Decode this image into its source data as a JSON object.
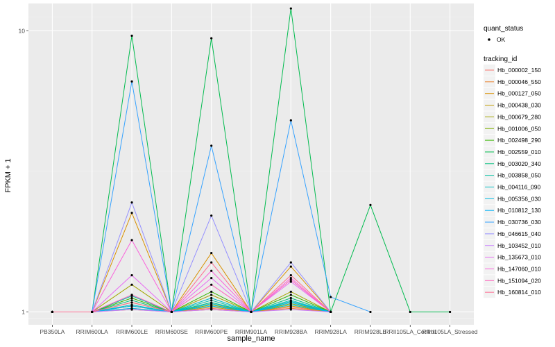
{
  "chart_data": {
    "type": "line",
    "xlabel": "sample_name",
    "ylabel": "FPKM + 1",
    "y_scale": "log10",
    "ylim": [
      0.9,
      12.5
    ],
    "y_ticks": [
      {
        "value": 1,
        "label": "1"
      },
      {
        "value": 10,
        "label": "10"
      }
    ],
    "categories": [
      "PB350LA",
      "RRIM600LA",
      "RRIM600LE",
      "RRIM600SE",
      "RRIM600PE",
      "RRIM901LA",
      "RRIM928BA",
      "RRIM928LA",
      "RRIM928LE",
      "RRII105LA_Control",
      "RRII105LA_Stressed"
    ],
    "legend_quant": {
      "title": "quant_status",
      "entries": [
        "OK"
      ]
    },
    "legend_tracking": {
      "title": "tracking_id"
    },
    "series": [
      {
        "name": "Hb_000002_150",
        "color": "#F8766D",
        "values": [
          1,
          1,
          1.03,
          1,
          1.03,
          1,
          1.04,
          1,
          null,
          null,
          null
        ]
      },
      {
        "name": "Hb_000046_550",
        "color": "#EA8331",
        "values": [
          1,
          1,
          1.02,
          1,
          1.02,
          1,
          1.03,
          1,
          null,
          null,
          null
        ]
      },
      {
        "name": "Hb_000127_050",
        "color": "#D89000",
        "values": [
          1,
          1,
          2.25,
          1,
          1.62,
          1,
          1.45,
          1,
          null,
          null,
          null
        ]
      },
      {
        "name": "Hb_000438_030",
        "color": "#C09B00",
        "values": [
          1,
          1,
          1.05,
          1,
          1.04,
          1,
          1.05,
          1,
          null,
          null,
          null
        ]
      },
      {
        "name": "Hb_000679_280",
        "color": "#A3A500",
        "values": [
          1,
          1,
          1.25,
          1,
          1.15,
          1,
          1.18,
          1,
          null,
          null,
          null
        ]
      },
      {
        "name": "Hb_001006_050",
        "color": "#7CAE00",
        "values": [
          1,
          1,
          1.08,
          1,
          1.06,
          1,
          1.07,
          1,
          null,
          null,
          null
        ]
      },
      {
        "name": "Hb_002498_290",
        "color": "#39B600",
        "values": [
          1,
          1,
          1.12,
          1,
          1.18,
          1,
          1.15,
          1,
          null,
          null,
          null
        ]
      },
      {
        "name": "Hb_002559_010",
        "color": "#00BB4E",
        "values": [
          1,
          1,
          9.6,
          1,
          9.4,
          1,
          12.0,
          1,
          2.4,
          1,
          1
        ]
      },
      {
        "name": "Hb_003020_340",
        "color": "#00BF7D",
        "values": [
          1,
          1,
          1.1,
          1,
          1.08,
          1,
          1.12,
          1,
          null,
          null,
          null
        ]
      },
      {
        "name": "Hb_003858_050",
        "color": "#00C1A3",
        "values": [
          1,
          1,
          1.14,
          1,
          1.1,
          1,
          1.09,
          1,
          null,
          null,
          null
        ]
      },
      {
        "name": "Hb_004116_090",
        "color": "#00BFC4",
        "values": [
          1,
          1,
          1.06,
          1,
          1.12,
          1,
          1.1,
          1,
          null,
          null,
          null
        ]
      },
      {
        "name": "Hb_005356_030",
        "color": "#00BAE0",
        "values": [
          1,
          1,
          1.03,
          1,
          1.07,
          1,
          1.06,
          1,
          null,
          null,
          null
        ]
      },
      {
        "name": "Hb_010812_130",
        "color": "#00B0F6",
        "values": [
          1,
          1,
          1.05,
          1,
          1.05,
          1,
          1.08,
          1,
          null,
          null,
          null
        ]
      },
      {
        "name": "Hb_030736_030",
        "color": "#35A2FF",
        "values": [
          1,
          1,
          6.6,
          1,
          3.9,
          1,
          4.8,
          1.13,
          1,
          null,
          null
        ]
      },
      {
        "name": "Hb_046615_040",
        "color": "#9590FF",
        "values": [
          1,
          1,
          2.45,
          1,
          2.2,
          1,
          1.5,
          1,
          null,
          null,
          null
        ]
      },
      {
        "name": "Hb_103452_010",
        "color": "#C77CFF",
        "values": [
          1,
          1,
          1.02,
          1,
          1.02,
          1,
          1.02,
          1,
          null,
          null,
          null
        ]
      },
      {
        "name": "Hb_135673_010",
        "color": "#E76BF3",
        "values": [
          1,
          1,
          1.35,
          1,
          1.32,
          1,
          1.28,
          1,
          null,
          null,
          null
        ]
      },
      {
        "name": "Hb_147060_010",
        "color": "#FA62DB",
        "values": [
          1,
          1,
          1.8,
          1,
          1.4,
          1,
          1.32,
          1,
          null,
          null,
          null
        ]
      },
      {
        "name": "Hb_151094_020",
        "color": "#FF62BC",
        "values": [
          1,
          1,
          1.15,
          1,
          1.25,
          1,
          1.3,
          1,
          null,
          null,
          null
        ]
      },
      {
        "name": "Hb_160814_010",
        "color": "#FF6C91",
        "values": [
          1,
          1,
          1.08,
          1,
          1.5,
          1,
          1.35,
          1,
          null,
          null,
          null
        ]
      }
    ]
  }
}
